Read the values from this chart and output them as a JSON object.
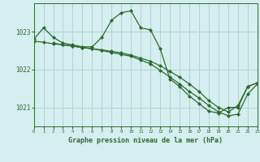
{
  "title": "Graphe pression niveau de la mer (hPa)",
  "background_color": "#d5eef0",
  "grid_color": "#b0d4cc",
  "line_color": "#2d6a2d",
  "xlim": [
    0,
    23
  ],
  "ylim": [
    1020.5,
    1023.75
  ],
  "yticks": [
    1021,
    1022,
    1023
  ],
  "xticks": [
    0,
    1,
    2,
    3,
    4,
    5,
    6,
    7,
    8,
    9,
    10,
    11,
    12,
    13,
    14,
    15,
    16,
    17,
    18,
    19,
    20,
    21,
    22,
    23
  ],
  "lines": [
    {
      "x": [
        0,
        1,
        2,
        3,
        4,
        5,
        6,
        7,
        8,
        9,
        10,
        11,
        12,
        13,
        14,
        15,
        16,
        17,
        18,
        19,
        20,
        21,
        22,
        23
      ],
      "y": [
        1022.8,
        1023.1,
        1022.85,
        1022.7,
        1022.65,
        1022.6,
        1022.6,
        1022.85,
        1023.3,
        1023.5,
        1023.55,
        1023.1,
        1023.05,
        1022.55,
        1021.75,
        1021.55,
        1021.3,
        1021.1,
        1020.9,
        1020.85,
        1021.0,
        1021.0,
        1021.55,
        1021.65
      ]
    },
    {
      "x": [
        0,
        1,
        2,
        3,
        4,
        5,
        6,
        7,
        8,
        9,
        10,
        11,
        12,
        13,
        14,
        15,
        16,
        17,
        18,
        19,
        20,
        21,
        22,
        23
      ],
      "y": [
        1022.75,
        1022.72,
        1022.68,
        1022.65,
        1022.62,
        1022.58,
        1022.55,
        1022.52,
        1022.48,
        1022.44,
        1022.38,
        1022.3,
        1022.22,
        1022.1,
        1021.95,
        1021.8,
        1021.62,
        1021.42,
        1021.18,
        1021.0,
        1020.88,
        1021.05,
        1021.55,
        1021.65
      ]
    },
    {
      "x": [
        2,
        3,
        4,
        5,
        6,
        7,
        8,
        9,
        10,
        11,
        12,
        13,
        14,
        15,
        16,
        17,
        18,
        19,
        20,
        21,
        22,
        23
      ],
      "y": [
        1022.7,
        1022.65,
        1022.62,
        1022.58,
        1022.55,
        1022.5,
        1022.45,
        1022.4,
        1022.35,
        1022.25,
        1022.15,
        1021.98,
        1021.8,
        1021.62,
        1021.42,
        1021.25,
        1021.05,
        1020.88,
        1020.78,
        1020.82,
        1021.35,
        1021.62
      ]
    }
  ]
}
